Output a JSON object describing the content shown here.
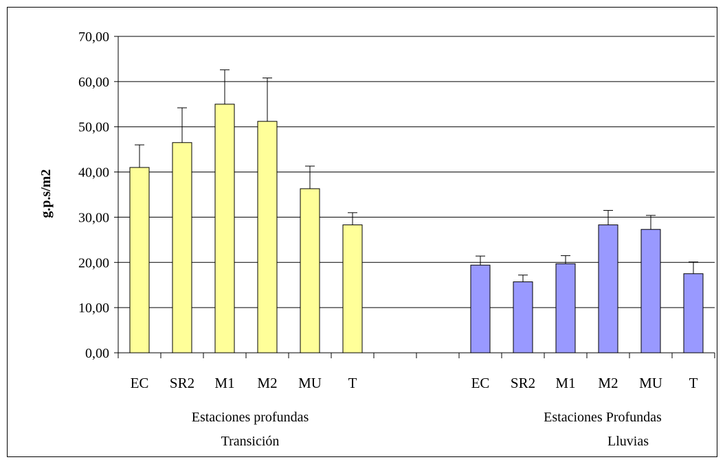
{
  "chart_data": {
    "type": "bar",
    "ylabel": "g.p.s/m2",
    "ylim": [
      0,
      70
    ],
    "yticks": [
      "0,00",
      "10,00",
      "20,00",
      "30,00",
      "40,00",
      "50,00",
      "60,00",
      "70,00"
    ],
    "grid": true,
    "groups": [
      {
        "label_lines": [
          "Estaciones profundas",
          "Transición"
        ],
        "color": "#ffff99",
        "categories": [
          "EC",
          "SR2",
          "M1",
          "M2",
          "MU",
          "T"
        ],
        "values": [
          41.0,
          46.5,
          55.0,
          51.2,
          36.3,
          28.3
        ],
        "errors": [
          5.0,
          7.7,
          7.6,
          9.6,
          5.0,
          2.7
        ]
      },
      {
        "label_lines": [
          "Estaciones Profundas",
          "Lluvias"
        ],
        "color": "#9999ff",
        "categories": [
          "EC",
          "SR2",
          "M1",
          "M2",
          "MU",
          "T"
        ],
        "values": [
          19.4,
          15.7,
          19.7,
          28.3,
          27.3,
          17.5
        ],
        "errors": [
          2.0,
          1.5,
          1.8,
          3.2,
          3.1,
          2.6
        ]
      }
    ]
  }
}
